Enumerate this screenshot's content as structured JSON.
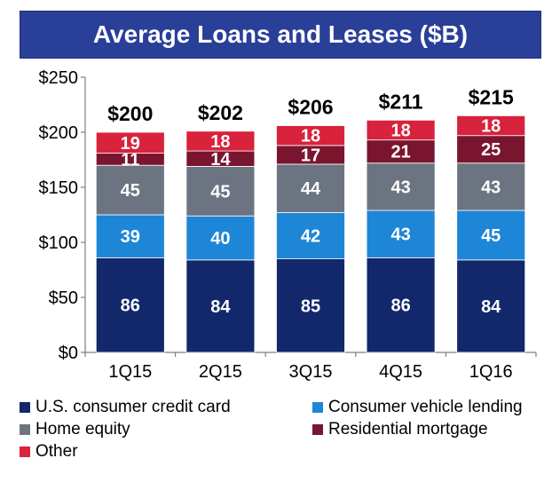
{
  "chart_data": {
    "type": "bar",
    "stacked": true,
    "title": "Average Loans and Leases ($B)",
    "categories": [
      "1Q15",
      "2Q15",
      "3Q15",
      "4Q15",
      "1Q16"
    ],
    "totals": [
      "$200",
      "$202",
      "$206",
      "$211",
      "$215"
    ],
    "series": [
      {
        "name": "U.S. consumer credit card",
        "color": "#12286b",
        "values": [
          86,
          84,
          85,
          86,
          84
        ]
      },
      {
        "name": "Consumer vehicle lending",
        "color": "#1e86d6",
        "values": [
          39,
          40,
          42,
          43,
          45
        ]
      },
      {
        "name": "Home equity",
        "color": "#6d7481",
        "values": [
          45,
          45,
          44,
          43,
          43
        ]
      },
      {
        "name": "Residential mortgage",
        "color": "#7a1530",
        "values": [
          11,
          14,
          17,
          21,
          25
        ]
      },
      {
        "name": "Other",
        "color": "#d9223c",
        "values": [
          19,
          18,
          18,
          18,
          18
        ]
      }
    ],
    "y_ticks": [
      "$0",
      "$50",
      "$100",
      "$150",
      "$200",
      "$250"
    ],
    "ylim": [
      0,
      250
    ],
    "grid": false,
    "legend_position": "bottom"
  }
}
